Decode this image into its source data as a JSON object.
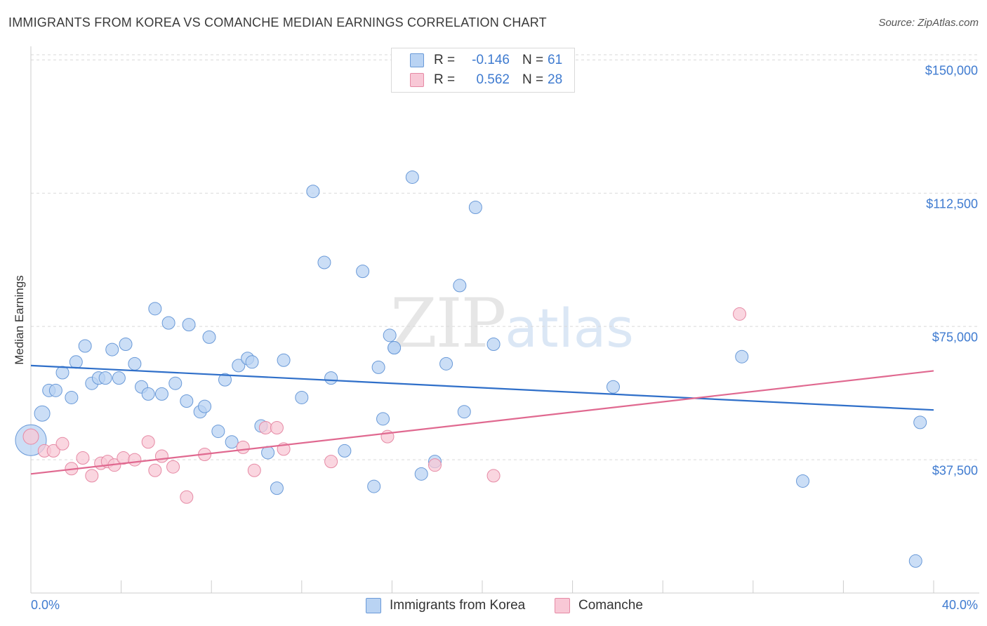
{
  "title": "IMMIGRANTS FROM KOREA VS COMANCHE MEDIAN EARNINGS CORRELATION CHART",
  "source": "Source: ZipAtlas.com",
  "watermark": {
    "zip": "ZIP",
    "atlas": "atlas"
  },
  "legend_top": {
    "rows": [
      {
        "r_label": "R =",
        "r_value": "-0.146",
        "n_label": "N =",
        "n_value": "61"
      },
      {
        "r_label": "R =",
        "r_value": "0.562",
        "n_label": "N =",
        "n_value": "28"
      }
    ]
  },
  "colors": {
    "korea_fill": "#b9d3f3",
    "korea_stroke": "#6a9ad8",
    "korea_line": "#2f6fc9",
    "comanche_fill": "#f8c8d6",
    "comanche_stroke": "#e68aa5",
    "comanche_line": "#e06990",
    "tick_text": "#3f7bd0",
    "grid": "#d9d9d9"
  },
  "chart_data": {
    "type": "scatter",
    "title": "IMMIGRANTS FROM KOREA VS COMANCHE MEDIAN EARNINGS CORRELATION CHART",
    "xlabel": "",
    "ylabel": "Median Earnings",
    "xlim": [
      0,
      40
    ],
    "ylim": [
      0,
      155000
    ],
    "x_tick_labels": [
      "0.0%",
      "40.0%"
    ],
    "y_ticks": [
      37500,
      75000,
      112500,
      150000
    ],
    "y_tick_labels": [
      "$37,500",
      "$75,000",
      "$112,500",
      "$150,000"
    ],
    "grid": true,
    "legend": "bottom-center",
    "series": [
      {
        "name": "Immigrants from Korea",
        "points": [
          [
            0.0,
            43000,
            22
          ],
          [
            0.5,
            50500,
            11
          ],
          [
            0.8,
            57000,
            9
          ],
          [
            1.1,
            57000,
            9
          ],
          [
            1.4,
            62000,
            9
          ],
          [
            1.8,
            55000,
            9
          ],
          [
            2.0,
            65000,
            9
          ],
          [
            2.4,
            69500,
            9
          ],
          [
            2.7,
            59000,
            9
          ],
          [
            3.0,
            60500,
            9
          ],
          [
            3.3,
            60500,
            9
          ],
          [
            3.6,
            68500,
            9
          ],
          [
            3.9,
            60500,
            9
          ],
          [
            4.2,
            70000,
            9
          ],
          [
            4.6,
            64500,
            9
          ],
          [
            4.9,
            58000,
            9
          ],
          [
            5.2,
            56000,
            9
          ],
          [
            5.5,
            80000,
            9
          ],
          [
            5.8,
            56000,
            9
          ],
          [
            6.1,
            76000,
            9
          ],
          [
            6.4,
            59000,
            9
          ],
          [
            6.9,
            54000,
            9
          ],
          [
            7.0,
            75500,
            9
          ],
          [
            7.5,
            51000,
            9
          ],
          [
            7.7,
            52500,
            9
          ],
          [
            7.9,
            72000,
            9
          ],
          [
            8.3,
            45500,
            9
          ],
          [
            8.6,
            60000,
            9
          ],
          [
            8.9,
            42500,
            9
          ],
          [
            9.2,
            64000,
            9
          ],
          [
            9.6,
            66000,
            9
          ],
          [
            9.8,
            65000,
            9
          ],
          [
            10.2,
            47000,
            9
          ],
          [
            10.5,
            39500,
            9
          ],
          [
            10.9,
            29500,
            9
          ],
          [
            11.2,
            65500,
            9
          ],
          [
            12.0,
            55000,
            9
          ],
          [
            12.5,
            113000,
            9
          ],
          [
            13.0,
            93000,
            9
          ],
          [
            13.3,
            60500,
            9
          ],
          [
            13.9,
            40000,
            9
          ],
          [
            14.7,
            90500,
            9
          ],
          [
            15.2,
            30000,
            9
          ],
          [
            15.6,
            49000,
            9
          ],
          [
            15.4,
            63500,
            9
          ],
          [
            15.9,
            72500,
            9
          ],
          [
            16.1,
            69000,
            9
          ],
          [
            16.1,
            69000,
            9
          ],
          [
            16.9,
            117000,
            9
          ],
          [
            17.3,
            33500,
            9
          ],
          [
            17.9,
            37000,
            9
          ],
          [
            18.4,
            64500,
            9
          ],
          [
            19.0,
            86500,
            9
          ],
          [
            19.2,
            51000,
            9
          ],
          [
            19.7,
            108500,
            9
          ],
          [
            20.5,
            70000,
            9
          ],
          [
            25.8,
            58000,
            9
          ],
          [
            31.5,
            66500,
            9
          ],
          [
            34.2,
            31500,
            9
          ],
          [
            39.2,
            9000,
            9
          ],
          [
            39.4,
            48000,
            9
          ]
        ],
        "trend": {
          "x0": 0,
          "y0": 64000,
          "x1": 40,
          "y1": 51500
        }
      },
      {
        "name": "Comanche",
        "points": [
          [
            0.0,
            44000,
            11
          ],
          [
            0.6,
            40000,
            9
          ],
          [
            1.0,
            40000,
            9
          ],
          [
            1.4,
            42000,
            9
          ],
          [
            1.8,
            35000,
            9
          ],
          [
            2.3,
            38000,
            9
          ],
          [
            2.7,
            33000,
            9
          ],
          [
            3.1,
            36500,
            9
          ],
          [
            3.4,
            37000,
            9
          ],
          [
            3.7,
            36000,
            9
          ],
          [
            4.1,
            38000,
            9
          ],
          [
            4.6,
            37500,
            9
          ],
          [
            5.2,
            42500,
            9
          ],
          [
            5.5,
            34500,
            9
          ],
          [
            5.8,
            38500,
            9
          ],
          [
            6.3,
            35500,
            9
          ],
          [
            6.9,
            27000,
            9
          ],
          [
            7.7,
            39000,
            9
          ],
          [
            9.4,
            41000,
            9
          ],
          [
            9.9,
            34500,
            9
          ],
          [
            10.4,
            46500,
            9
          ],
          [
            10.9,
            46500,
            9
          ],
          [
            11.2,
            40500,
            9
          ],
          [
            13.3,
            37000,
            9
          ],
          [
            15.8,
            44000,
            9
          ],
          [
            17.9,
            36000,
            9
          ],
          [
            20.5,
            33000,
            9
          ],
          [
            31.4,
            78500,
            9
          ]
        ],
        "trend": {
          "x0": 0,
          "y0": 33500,
          "x1": 40,
          "y1": 62500
        }
      }
    ]
  }
}
